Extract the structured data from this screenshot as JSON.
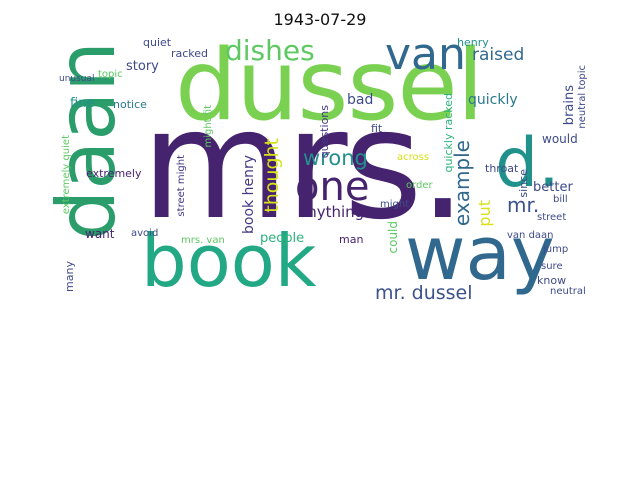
{
  "title": "1943-07-29",
  "colors": {
    "dark_purple": "#46236e",
    "purple": "#472a7a",
    "blue": "#31688e",
    "teal": "#2a788e",
    "green_teal": "#21918c",
    "green": "#2db27d",
    "light_green": "#5ec962",
    "lime": "#addc30",
    "yellow_green": "#d8e219"
  },
  "words": [
    {
      "text": "mrs."
    },
    {
      "text": "dussel"
    },
    {
      "text": "daan"
    },
    {
      "text": "book"
    },
    {
      "text": "way"
    },
    {
      "text": "d."
    },
    {
      "text": "one"
    },
    {
      "text": "van"
    },
    {
      "text": "dishes"
    },
    {
      "text": "example"
    },
    {
      "text": "mr. dussel"
    },
    {
      "text": "wrong"
    },
    {
      "text": "thought"
    },
    {
      "text": "book henry"
    },
    {
      "text": "anything"
    },
    {
      "text": "mr."
    },
    {
      "text": "put"
    },
    {
      "text": "raised"
    },
    {
      "text": "henry"
    },
    {
      "text": "quickly racked"
    },
    {
      "text": "bad"
    },
    {
      "text": "quiet"
    },
    {
      "text": "racked"
    },
    {
      "text": "story"
    },
    {
      "text": "topic"
    },
    {
      "text": "fine"
    },
    {
      "text": "notice"
    },
    {
      "text": "extremely quiet"
    },
    {
      "text": "extremely"
    },
    {
      "text": "street might"
    },
    {
      "text": "might fit"
    },
    {
      "text": "questions"
    },
    {
      "text": "fit"
    },
    {
      "text": "quickly"
    },
    {
      "text": "since"
    },
    {
      "text": "better"
    },
    {
      "text": "would"
    },
    {
      "text": "throat"
    },
    {
      "text": "brains"
    },
    {
      "text": "neutral topic"
    },
    {
      "text": "across"
    },
    {
      "text": "order"
    },
    {
      "text": "might"
    },
    {
      "text": "bill"
    },
    {
      "text": "could"
    },
    {
      "text": "street"
    },
    {
      "text": "van daan"
    },
    {
      "text": "jump"
    },
    {
      "text": "want"
    },
    {
      "text": "avoid"
    },
    {
      "text": "mrs. van"
    },
    {
      "text": "people"
    },
    {
      "text": "man"
    },
    {
      "text": "many"
    },
    {
      "text": "sure"
    },
    {
      "text": "know"
    },
    {
      "text": "neutral"
    },
    {
      "text": "unusual"
    }
  ]
}
